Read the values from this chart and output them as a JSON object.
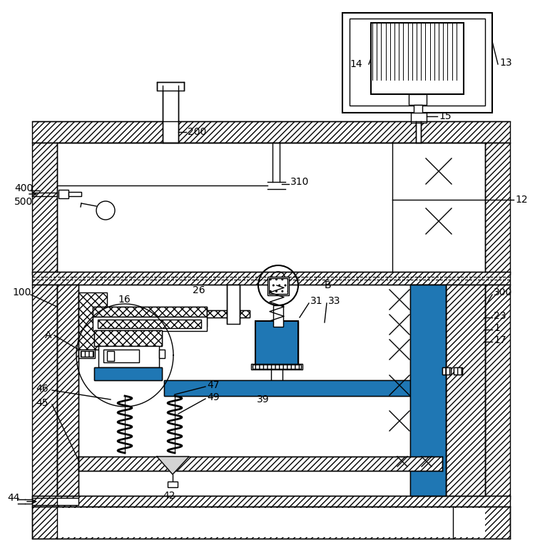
{
  "bg_color": "#ffffff",
  "line_color": "#000000",
  "fig_width": 7.5,
  "fig_height": 7.71,
  "dpi": 100
}
